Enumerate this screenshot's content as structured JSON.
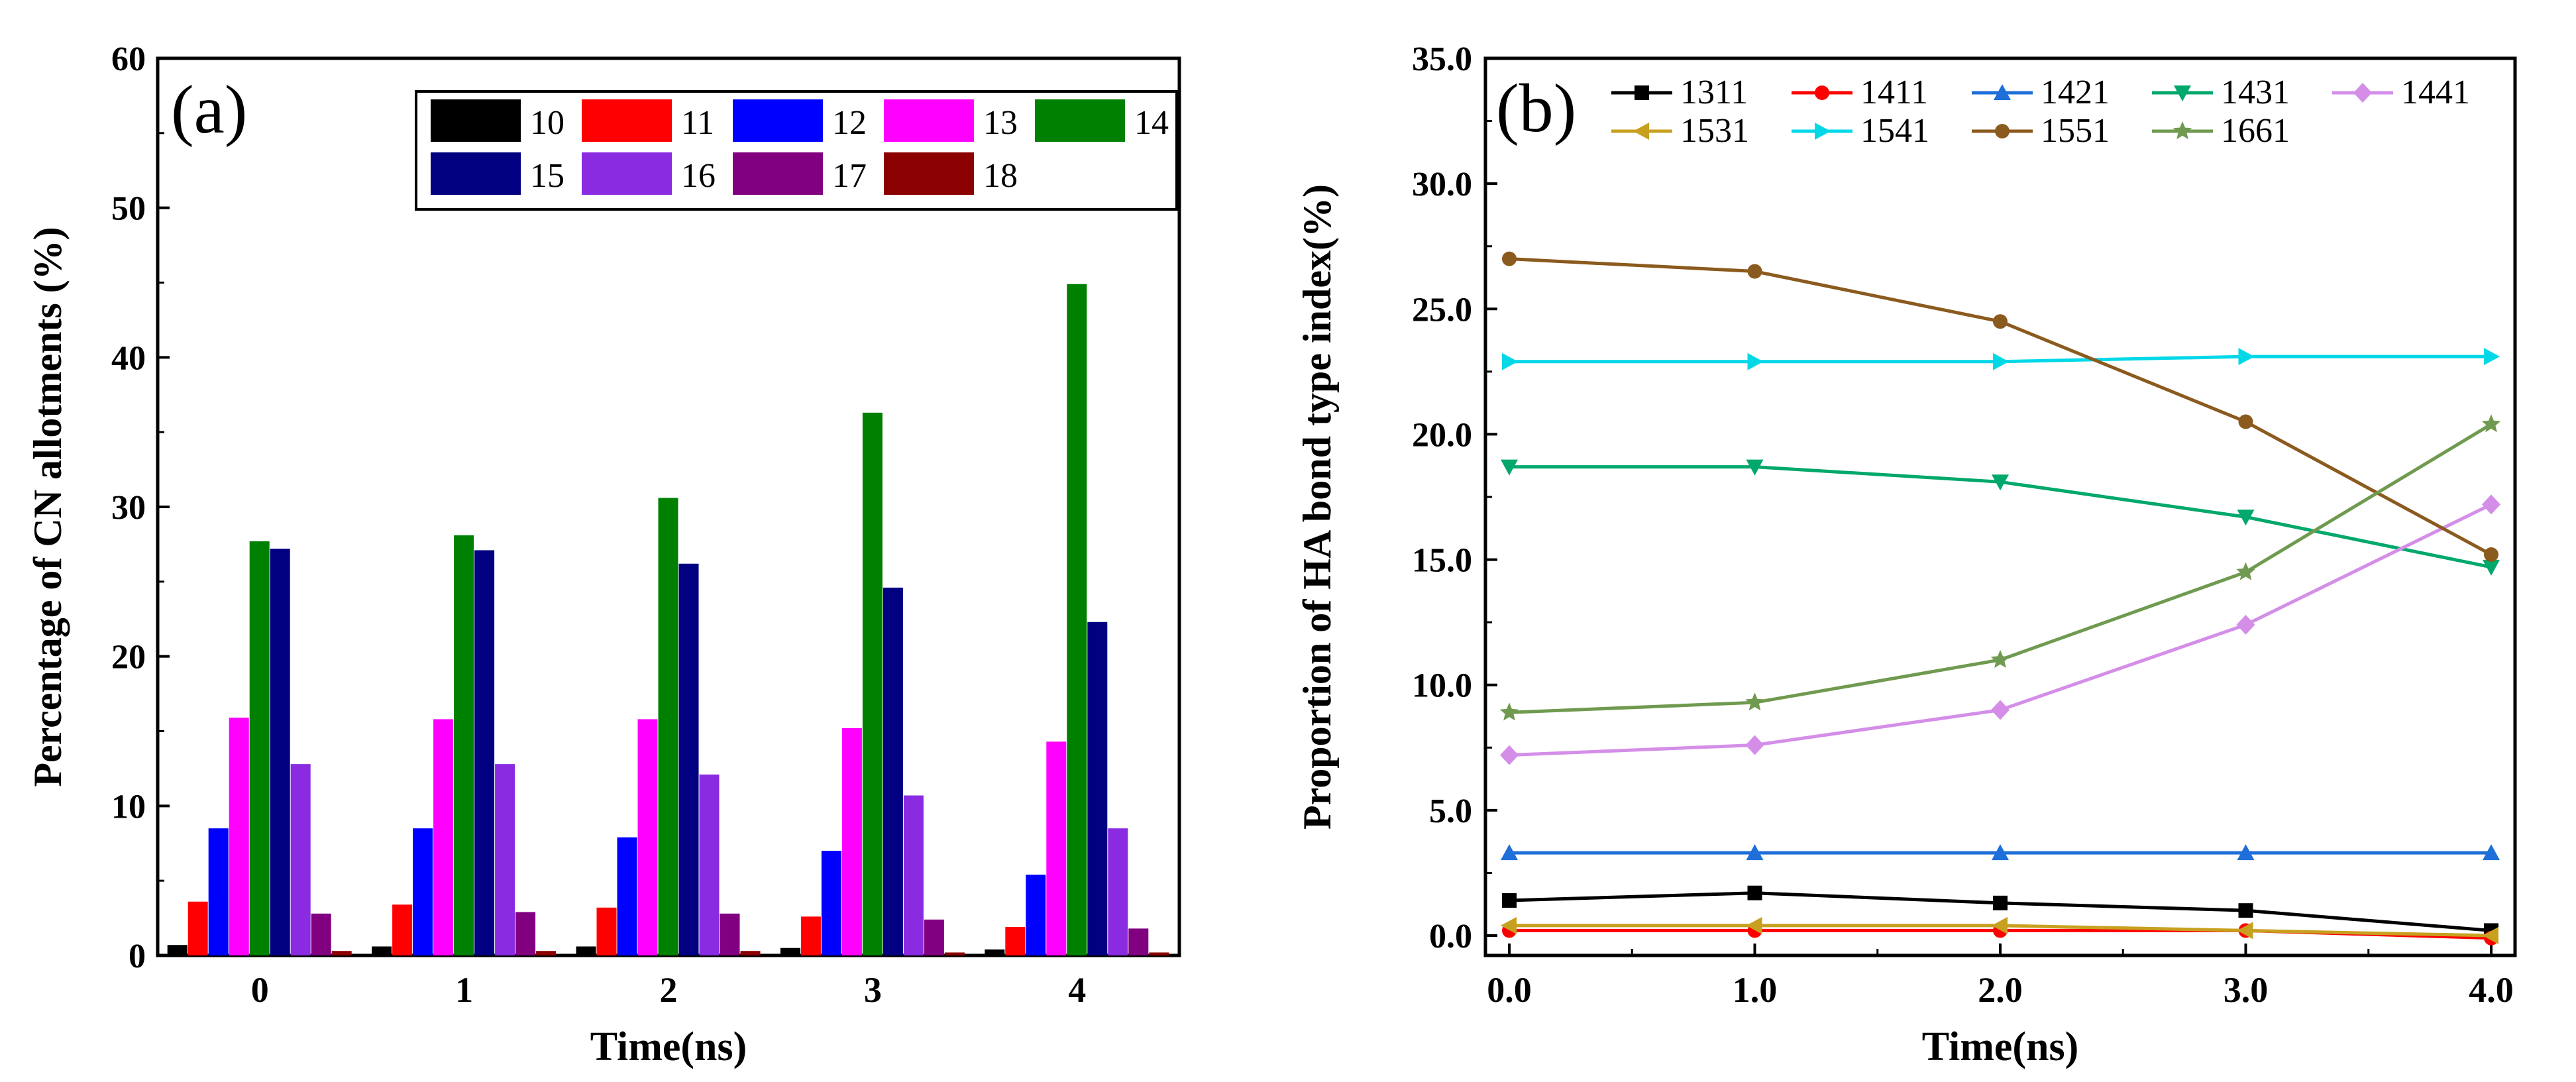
{
  "chart_data": [
    {
      "type": "bar",
      "panel_label": "(a)",
      "xlabel": "Time(ns)",
      "ylabel": "Percentage of CN allotments (%)",
      "ylim": [
        0,
        60
      ],
      "yticks": [
        "0",
        "10",
        "20",
        "30",
        "40",
        "50",
        "60"
      ],
      "categories": [
        "0",
        "1",
        "2",
        "3",
        "4"
      ],
      "legend_position": "top-right",
      "series": [
        {
          "name": "10",
          "color": "#000000",
          "values": [
            0.7,
            0.6,
            0.6,
            0.5,
            0.4
          ]
        },
        {
          "name": "11",
          "color": "#ff0000",
          "values": [
            3.6,
            3.4,
            3.2,
            2.6,
            1.9
          ]
        },
        {
          "name": "12",
          "color": "#0000ff",
          "values": [
            8.5,
            8.5,
            7.9,
            7.0,
            5.4
          ]
        },
        {
          "name": "13",
          "color": "#ff00ff",
          "values": [
            15.9,
            15.8,
            15.8,
            15.2,
            14.3
          ]
        },
        {
          "name": "14",
          "color": "#008000",
          "values": [
            27.7,
            28.1,
            30.6,
            36.3,
            44.9
          ]
        },
        {
          "name": "15",
          "color": "#000080",
          "values": [
            27.2,
            27.1,
            26.2,
            24.6,
            22.3
          ]
        },
        {
          "name": "16",
          "color": "#8a2be2",
          "values": [
            12.8,
            12.8,
            12.1,
            10.7,
            8.5
          ]
        },
        {
          "name": "17",
          "color": "#800080",
          "values": [
            2.8,
            2.9,
            2.8,
            2.4,
            1.8
          ]
        },
        {
          "name": "18",
          "color": "#8b0000",
          "values": [
            0.3,
            0.3,
            0.3,
            0.2,
            0.2
          ]
        }
      ]
    },
    {
      "type": "line",
      "panel_label": "(b)",
      "xlabel": "Time(ns)",
      "ylabel": "Proportion of HA bond type index(%)",
      "xlim": [
        0,
        4
      ],
      "ylim": [
        0,
        35
      ],
      "x": [
        0,
        1,
        2,
        3,
        4
      ],
      "xticks": [
        "0.0",
        "1.0",
        "2.0",
        "3.0",
        "4.0"
      ],
      "yticks": [
        "0.0",
        "5.0",
        "10.0",
        "15.0",
        "20.0",
        "25.0",
        "30.0",
        "35.0"
      ],
      "legend_position": "top",
      "series": [
        {
          "name": "1311",
          "color": "#000000",
          "marker": "square",
          "values": [
            1.4,
            1.7,
            1.3,
            1.0,
            0.2
          ]
        },
        {
          "name": "1411",
          "color": "#ff0000",
          "marker": "circle",
          "values": [
            0.2,
            0.2,
            0.2,
            0.2,
            -0.1
          ]
        },
        {
          "name": "1421",
          "color": "#1e6fd9",
          "marker": "triangle-up",
          "values": [
            3.3,
            3.3,
            3.3,
            3.3,
            3.3
          ]
        },
        {
          "name": "1431",
          "color": "#00a86b",
          "marker": "triangle-down",
          "values": [
            18.7,
            18.7,
            18.1,
            16.7,
            14.7
          ]
        },
        {
          "name": "1441",
          "color": "#d48ee8",
          "marker": "diamond",
          "values": [
            7.2,
            7.6,
            9.0,
            12.4,
            17.2
          ]
        },
        {
          "name": "1531",
          "color": "#c8a020",
          "marker": "triangle-left",
          "values": [
            0.4,
            0.4,
            0.4,
            0.2,
            0.0
          ]
        },
        {
          "name": "1541",
          "color": "#00d8e8",
          "marker": "triangle-right",
          "values": [
            22.9,
            22.9,
            22.9,
            23.1,
            23.1
          ]
        },
        {
          "name": "1551",
          "color": "#8b5a1e",
          "marker": "hexagon",
          "values": [
            27.0,
            26.5,
            24.5,
            20.5,
            15.2
          ]
        },
        {
          "name": "1661",
          "color": "#6f9a4f",
          "marker": "star",
          "values": [
            8.9,
            9.3,
            11.0,
            14.5,
            20.4
          ]
        }
      ]
    }
  ]
}
